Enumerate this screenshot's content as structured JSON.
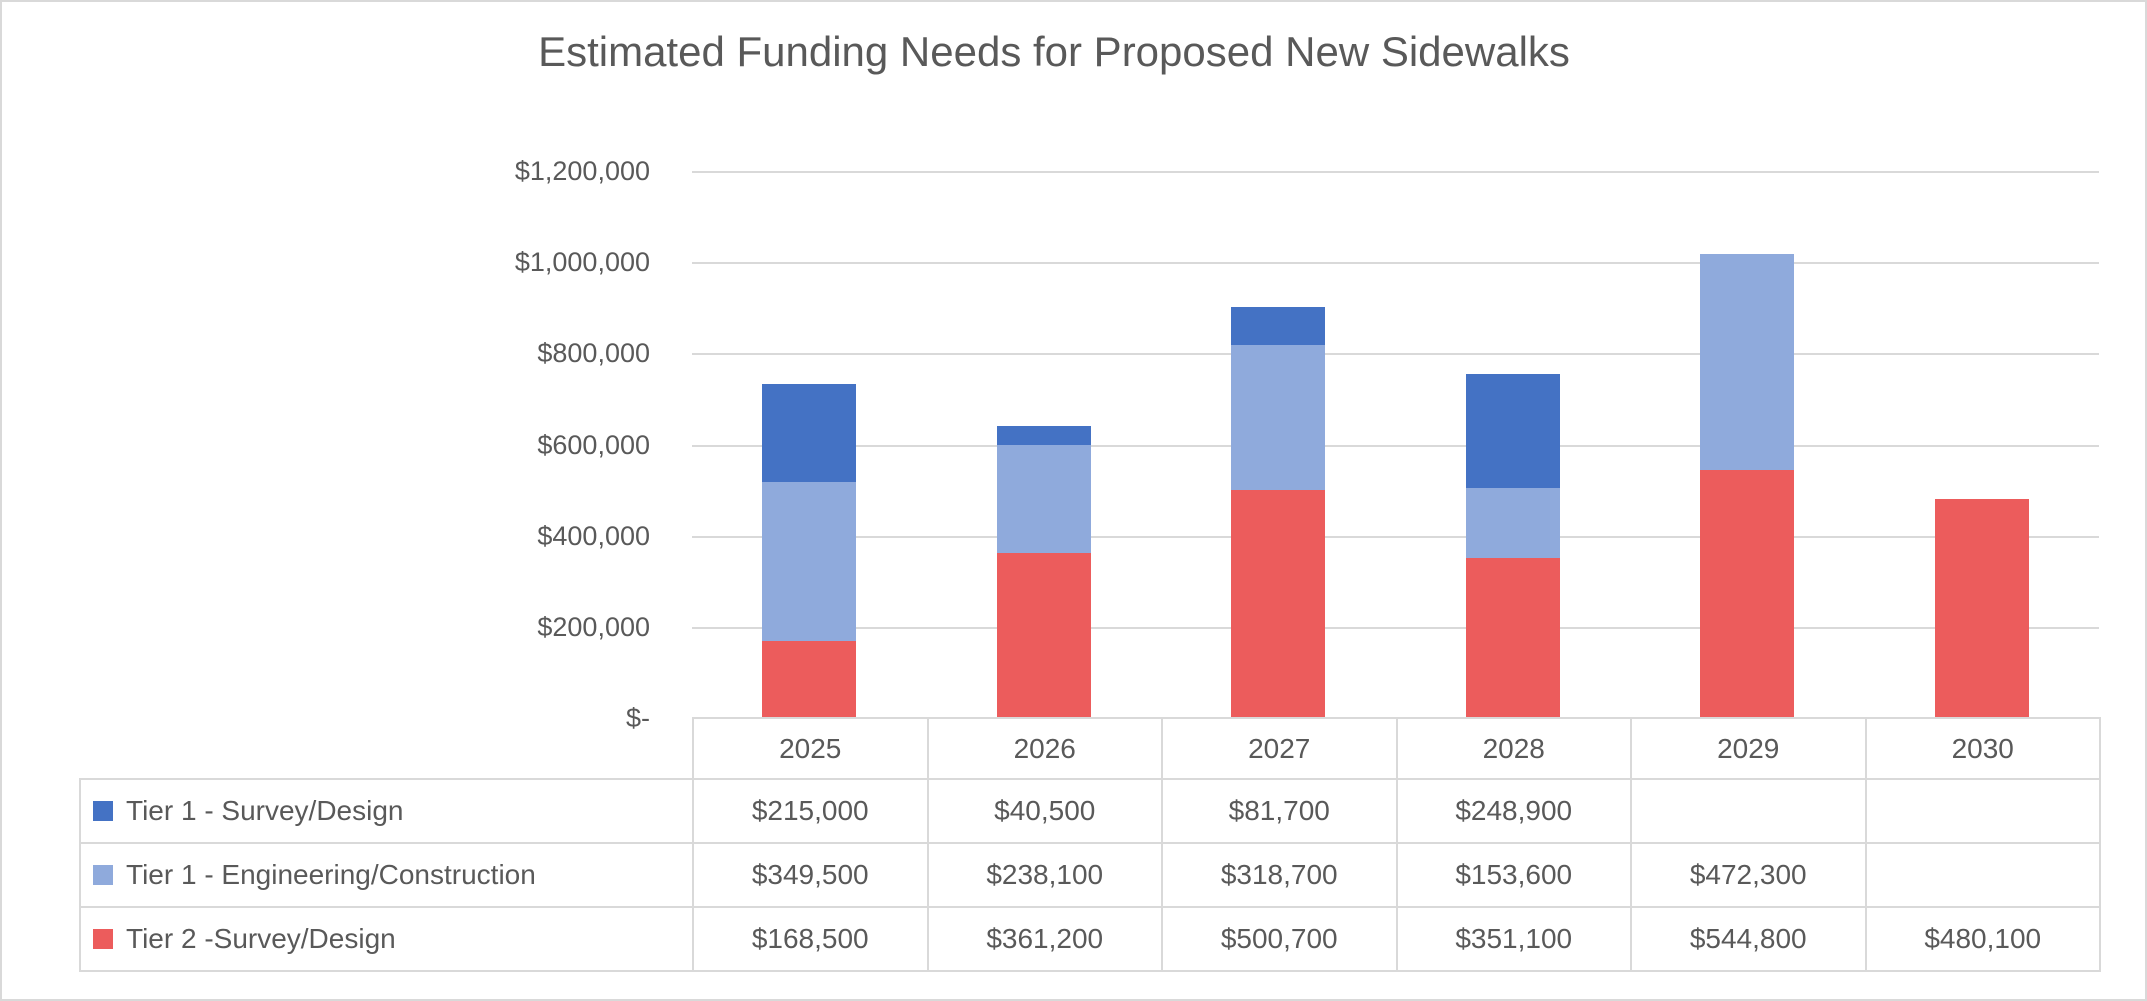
{
  "window": {
    "background": "#FFFFFF",
    "frame_border_color": "#D9D9D9",
    "table_border_color": "#D9D9D9",
    "text_color": "#595959"
  },
  "chart_data": {
    "type": "bar",
    "stacked": true,
    "title": "Estimated Funding Needs for Proposed New Sidewalks",
    "categories": [
      "2025",
      "2026",
      "2027",
      "2028",
      "2029",
      "2030"
    ],
    "series": [
      {
        "name": "Tier 1 - Survey/Design",
        "color": "#4472C4",
        "values": [
          215000,
          40500,
          81700,
          248900,
          null,
          null
        ],
        "display": [
          "$215,000",
          "$40,500",
          "$81,700",
          "$248,900",
          "",
          ""
        ]
      },
      {
        "name": "Tier 1 - Engineering/Construction",
        "color": "#8FAADC",
        "values": [
          349500,
          238100,
          318700,
          153600,
          472300,
          null
        ],
        "display": [
          "$349,500",
          "$238,100",
          "$318,700",
          "$153,600",
          "$472,300",
          ""
        ]
      },
      {
        "name": "Tier 2 -Survey/Design",
        "color": "#EC5C5C",
        "values": [
          168500,
          361200,
          500700,
          351100,
          544800,
          480100
        ],
        "display": [
          "$168,500",
          "$361,200",
          "$500,700",
          "$351,100",
          "$544,800",
          "$480,100"
        ]
      }
    ],
    "stack_order_bottom_to_top": [
      "Tier 2 -Survey/Design",
      "Tier 1 - Engineering/Construction",
      "Tier 1 - Survey/Design"
    ],
    "y_axis": {
      "min": 0,
      "max": 1200000,
      "step": 200000,
      "tick_labels": [
        "$1,200,000",
        "$1,000,000",
        "$800,000",
        "$600,000",
        "$400,000",
        "$200,000",
        "$-"
      ]
    },
    "x_axis": {
      "labels_shown_in": "data-table header row"
    },
    "grid": true,
    "legend_position": "data-table left column"
  }
}
